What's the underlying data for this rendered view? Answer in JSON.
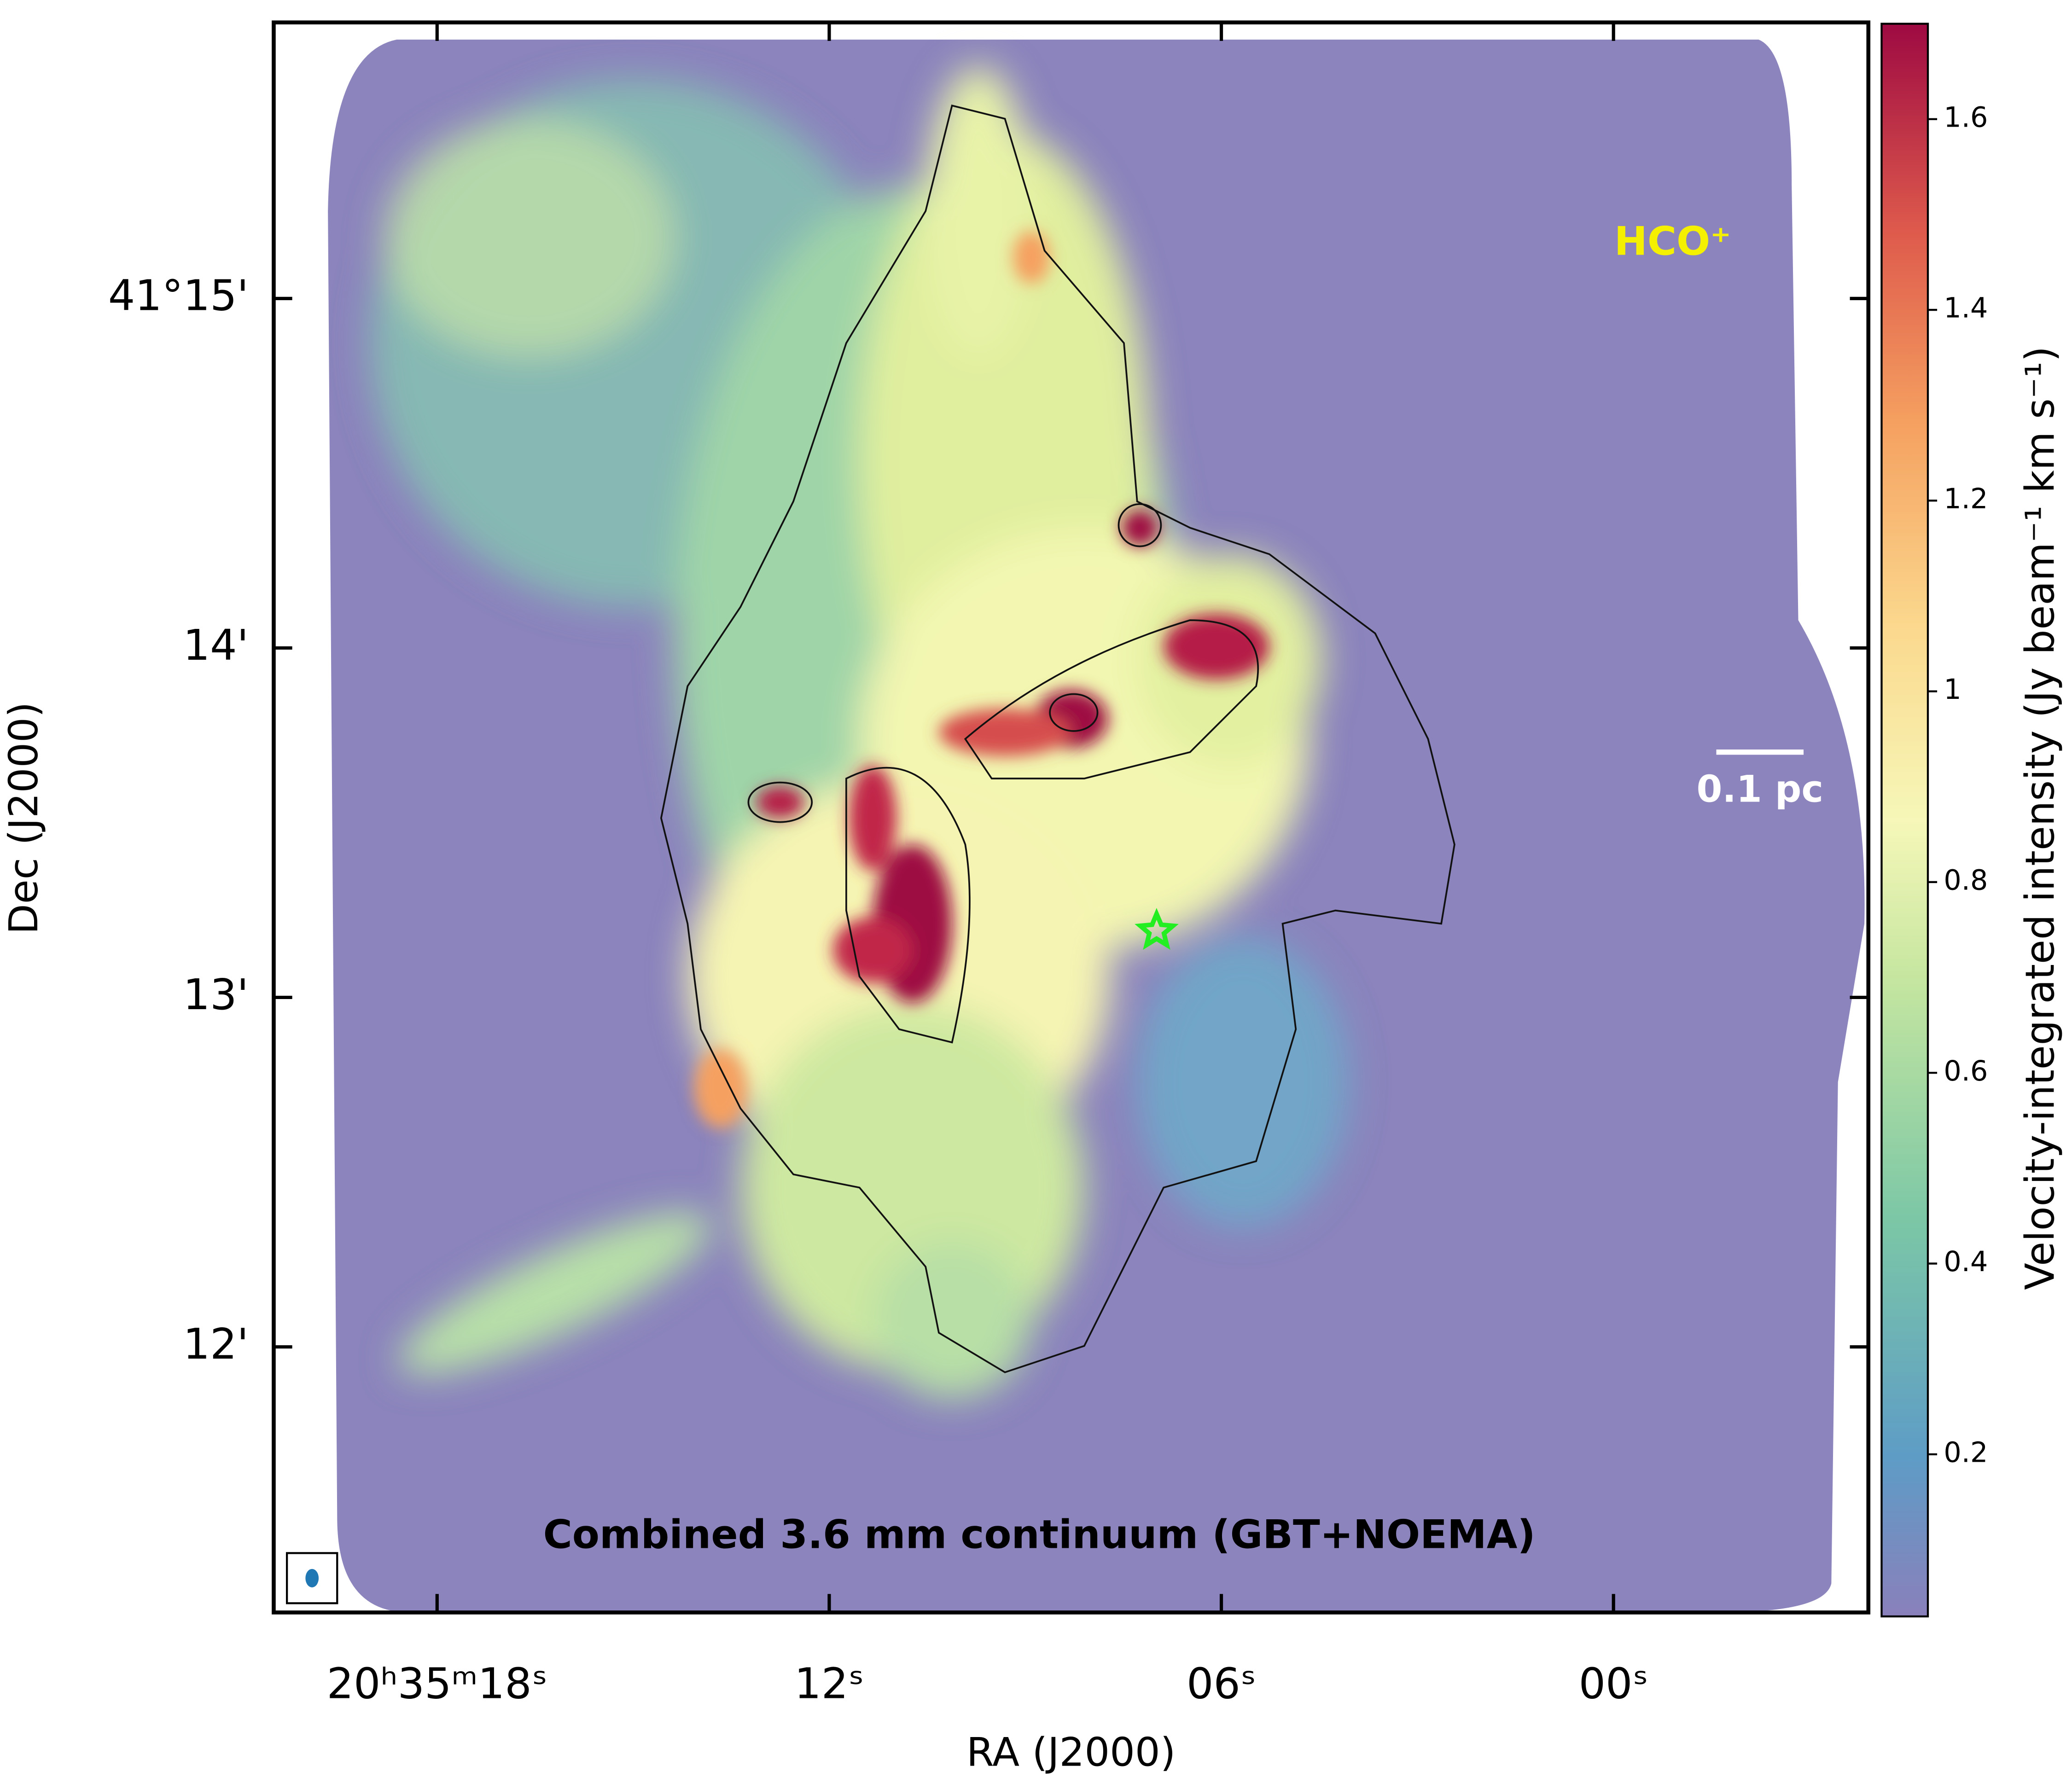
{
  "chart_data": {
    "type": "image",
    "annotation": "HCO⁺",
    "scale_label": "0.1 pc",
    "caption": "Combined 3.6 mm continuum (GBT+NOEMA)",
    "xlabel": "RA (J2000)",
    "ylabel": "Dec (J2000)",
    "colorbar_label": "Velocity-integrated intensity (Jy beam⁻¹ km s⁻¹)",
    "xlim": [
      20.5,
      -3.9
    ],
    "xticks": [
      {
        "value": 18,
        "label": "20ʰ35ᵐ18ˢ"
      },
      {
        "value": 12,
        "label": "12ˢ"
      },
      {
        "value": 6,
        "label": "06ˢ"
      },
      {
        "value": 0,
        "label": "00ˢ"
      }
    ],
    "ylim": [
      11.24,
      15.79
    ],
    "yticks": [
      {
        "value": 15,
        "label": "41°15'"
      },
      {
        "value": 14,
        "label": "14'"
      },
      {
        "value": 13,
        "label": "13'"
      },
      {
        "value": 12,
        "label": "12'"
      }
    ],
    "clim": [
      0.03,
      1.7
    ],
    "cticks": [
      0.2,
      0.4,
      0.6,
      0.8,
      1.0,
      1.2,
      1.4,
      1.6
    ],
    "markers": [
      {
        "x": 6.99,
        "y": 13.19,
        "color": "#22ee22"
      }
    ]
  }
}
